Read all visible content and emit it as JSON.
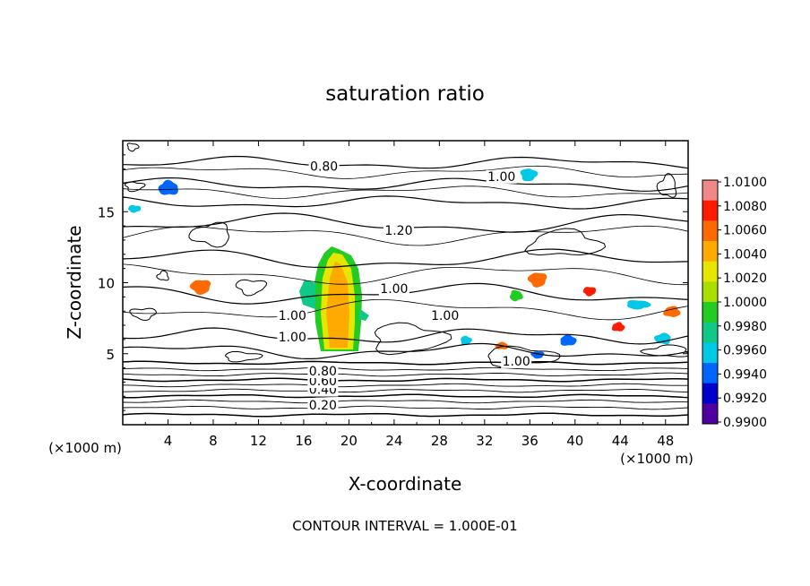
{
  "chart_data": {
    "type": "contour",
    "title": "saturation ratio",
    "xlabel": "X-coordinate",
    "ylabel": "Z-coordinate",
    "x_unit": "(×1000 m)",
    "x_unit_right": "(×1000 m)",
    "xlim": [
      0,
      50
    ],
    "ylim": [
      0,
      20
    ],
    "x_ticks": [
      4,
      8,
      12,
      16,
      20,
      24,
      28,
      32,
      36,
      40,
      44,
      48
    ],
    "y_ticks": [
      5,
      10,
      15
    ],
    "footer": "CONTOUR INTERVAL = 1.000E-01",
    "contour_labels": [
      {
        "text": "0.20",
        "x": 17.7,
        "z": 1.2
      },
      {
        "text": "0.40",
        "x": 17.7,
        "z": 2.3
      },
      {
        "text": "0.60",
        "x": 17.7,
        "z": 2.9
      },
      {
        "text": "0.80",
        "x": 17.7,
        "z": 3.6
      },
      {
        "text": "0.80",
        "x": 17.8,
        "z": 18.0
      },
      {
        "text": "1.00",
        "x": 33.5,
        "z": 17.3
      },
      {
        "text": "1.20",
        "x": 24.4,
        "z": 13.5
      },
      {
        "text": "1.00",
        "x": 24.0,
        "z": 9.4
      },
      {
        "text": "1.00",
        "x": 28.5,
        "z": 7.5
      },
      {
        "text": "1.00",
        "x": 15.0,
        "z": 7.5
      },
      {
        "text": "1.00",
        "x": 15.0,
        "z": 6.0
      },
      {
        "text": "1.00",
        "x": 34.8,
        "z": 4.3
      }
    ],
    "colorbar": {
      "ticks": [
        "1.0100",
        "1.0080",
        "1.0060",
        "1.0040",
        "1.0020",
        "1.0000",
        "0.9980",
        "0.9960",
        "0.9940",
        "0.9920",
        "0.9900"
      ],
      "colors": [
        "#f08888",
        "#ff1a00",
        "#ff6a00",
        "#ffaa00",
        "#e6e600",
        "#aadd00",
        "#22cc22",
        "#10c888",
        "#00c8e6",
        "#0066ff",
        "#0000cc",
        "#5000a0"
      ]
    }
  }
}
